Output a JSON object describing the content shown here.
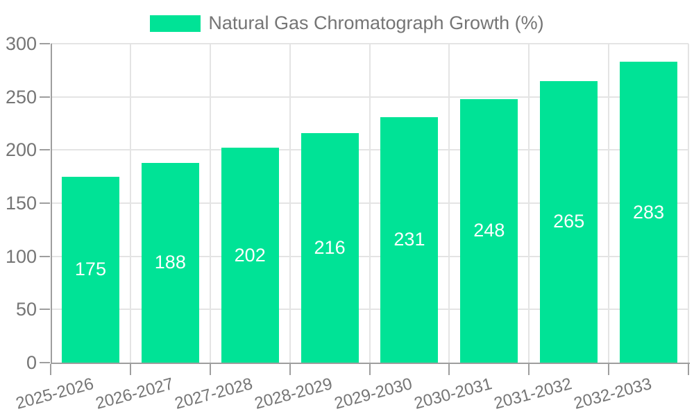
{
  "chart_data": {
    "type": "bar",
    "title": "Natural Gas Chromatograph Growth (%)",
    "legend": {
      "label": "Natural Gas Chromatograph Growth (%)",
      "position": "top-center"
    },
    "categories": [
      "2025-2026",
      "2026-2027",
      "2027-2028",
      "2028-2029",
      "2029-2030",
      "2030-2031",
      "2031-2032",
      "2032-2033"
    ],
    "values": [
      175,
      188,
      202,
      216,
      231,
      248,
      265,
      283
    ],
    "series": [
      {
        "name": "Natural Gas Chromatograph Growth (%)",
        "values": [
          175,
          188,
          202,
          216,
          231,
          248,
          265,
          283
        ]
      }
    ],
    "xlabel": "",
    "ylabel": "",
    "ylim": [
      0,
      300
    ],
    "yticks": [
      0,
      50,
      100,
      150,
      200,
      250,
      300
    ],
    "grid": true,
    "x_label_rotation": -15,
    "value_label_position": "center",
    "colors": {
      "bar": "#00E396",
      "grid": "#e4e4e4",
      "axis": "#9e9e9e",
      "tick_text": "#757575",
      "legend_text": "#757575",
      "value_label": "#ffffff",
      "background": "#ffffff"
    }
  }
}
